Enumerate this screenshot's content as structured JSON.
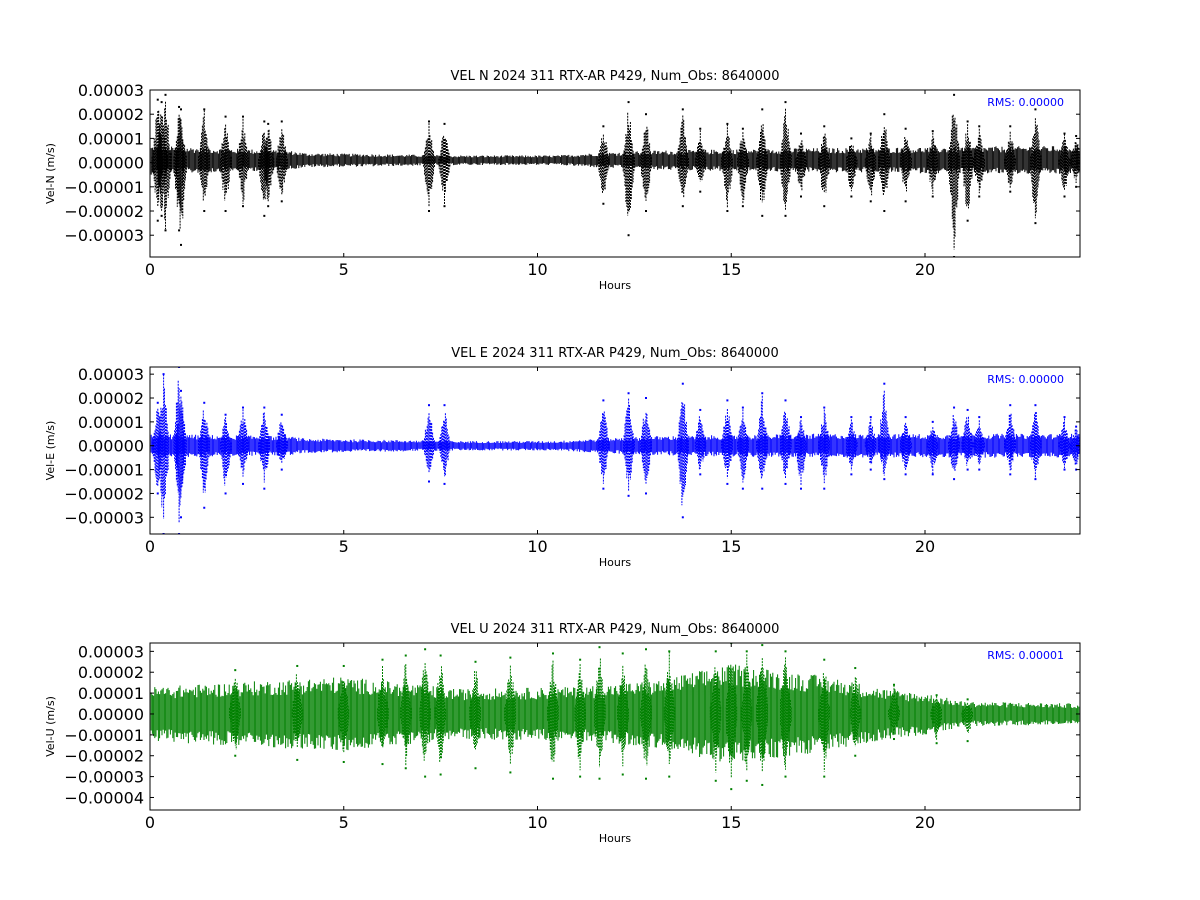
{
  "chart_data": [
    {
      "type": "scatter",
      "title": "VEL N 2024 311 RTX-AR  P429, Num_Obs: 8640000",
      "xlabel": "Hours",
      "ylabel": "Vel-N (m/s)",
      "xlim": [
        0,
        24
      ],
      "ylim": [
        -3.9e-05,
        3e-05
      ],
      "xticks": [
        0,
        5,
        10,
        15,
        20
      ],
      "xtick_labels": [
        "0",
        "5",
        "10",
        "15",
        "20"
      ],
      "yticks": [
        3e-05,
        2e-05,
        1e-05,
        0.0,
        -1e-05,
        -2e-05,
        -3e-05
      ],
      "ytick_labels": [
        "0.00003",
        "0.00002",
        "0.00001",
        "0.00000",
        "−0.00001",
        "−0.00002",
        "−0.00003"
      ],
      "annotation": "RMS:  0.00000",
      "annotation_color": "#0000ff",
      "series": [
        {
          "color": "#000000",
          "baseline": 1e-06,
          "noise_band": [
            [
              0,
              6e-06
            ],
            [
              3.6,
              4e-06
            ],
            [
              4.0,
              3e-06
            ],
            [
              8.0,
              2e-06
            ],
            [
              10.5,
              2e-06
            ],
            [
              11.5,
              3e-06
            ],
            [
              13.0,
              4e-06
            ],
            [
              17.0,
              5e-06
            ],
            [
              24,
              6e-06
            ]
          ],
          "bursts": [
            [
              0.2,
              2.6e-05,
              -2.4e-05
            ],
            [
              0.3,
              2.5e-05,
              -2.2e-05
            ],
            [
              0.4,
              2.8e-05,
              -2.8e-05
            ],
            [
              0.75,
              2.3e-05,
              -2.8e-05
            ],
            [
              0.8,
              2.2e-05,
              -3.4e-05
            ],
            [
              1.4,
              2.2e-05,
              -2e-05
            ],
            [
              1.95,
              1.9e-05,
              -2e-05
            ],
            [
              2.4,
              1.9e-05,
              -1.8e-05
            ],
            [
              2.95,
              1.7e-05,
              -2.2e-05
            ],
            [
              3.05,
              1.6e-05,
              -1.8e-05
            ],
            [
              3.4,
              1.7e-05,
              -1.6e-05
            ],
            [
              7.2,
              1.7e-05,
              -2e-05
            ],
            [
              7.6,
              1.6e-05,
              -1.8e-05
            ],
            [
              11.7,
              1.5e-05,
              -1.7e-05
            ],
            [
              12.35,
              2.5e-05,
              -3e-05
            ],
            [
              12.8,
              2e-05,
              -2e-05
            ],
            [
              13.75,
              2.2e-05,
              -1.8e-05
            ],
            [
              14.2,
              1.4e-05,
              -1.2e-05
            ],
            [
              14.9,
              1.6e-05,
              -2e-05
            ],
            [
              15.3,
              1.4e-05,
              -1.8e-05
            ],
            [
              15.8,
              2.2e-05,
              -2.2e-05
            ],
            [
              16.4,
              2.5e-05,
              -2.2e-05
            ],
            [
              16.8,
              1.2e-05,
              -1.4e-05
            ],
            [
              17.4,
              1.5e-05,
              -1.8e-05
            ],
            [
              18.1,
              1e-05,
              -1.4e-05
            ],
            [
              18.6,
              1.2e-05,
              -1.6e-05
            ],
            [
              18.95,
              2e-05,
              -2e-05
            ],
            [
              19.5,
              1.4e-05,
              -1.6e-05
            ],
            [
              20.2,
              1.3e-05,
              -1.4e-05
            ],
            [
              20.75,
              2.8e-05,
              -3.9e-05
            ],
            [
              21.1,
              1.7e-05,
              -2.4e-05
            ],
            [
              21.4,
              1.5e-05,
              -1.4e-05
            ],
            [
              22.2,
              1.5e-05,
              -1.2e-05
            ],
            [
              22.85,
              2.2e-05,
              -2.5e-05
            ],
            [
              23.6,
              1.2e-05,
              -1.4e-05
            ],
            [
              23.9,
              1.1e-05,
              -1e-05
            ]
          ]
        }
      ]
    },
    {
      "type": "scatter",
      "title": "VEL E 2024 311 RTX-AR  P429, Num_Obs: 8640000",
      "xlabel": "Hours",
      "ylabel": "Vel-E (m/s)",
      "xlim": [
        0,
        24
      ],
      "ylim": [
        -3.7e-05,
        3.3e-05
      ],
      "xticks": [
        0,
        5,
        10,
        15,
        20
      ],
      "xtick_labels": [
        "0",
        "5",
        "10",
        "15",
        "20"
      ],
      "yticks": [
        3e-05,
        2e-05,
        1e-05,
        0.0,
        -1e-05,
        -2e-05,
        -3e-05
      ],
      "ytick_labels": [
        "0.00003",
        "0.00002",
        "0.00001",
        "0.00000",
        "−0.00001",
        "−0.00002",
        "−0.00003"
      ],
      "annotation": "RMS:  0.00000",
      "annotation_color": "#0000ff",
      "series": [
        {
          "color": "#0000ff",
          "baseline": 0.0,
          "noise_band": [
            [
              0,
              5e-06
            ],
            [
              3.6,
              4e-06
            ],
            [
              4.0,
              3e-06
            ],
            [
              8.0,
              2e-06
            ],
            [
              10.5,
              2e-06
            ],
            [
              11.5,
              3e-06
            ],
            [
              13.0,
              4e-06
            ],
            [
              17.0,
              5e-06
            ],
            [
              24,
              5e-06
            ]
          ],
          "bursts": [
            [
              0.2,
              1.8e-05,
              -2e-05
            ],
            [
              0.35,
              3e-05,
              -3.7e-05
            ],
            [
              0.75,
              3.3e-05,
              -3.7e-05
            ],
            [
              0.8,
              2.3e-05,
              -3e-05
            ],
            [
              1.4,
              1.8e-05,
              -2.6e-05
            ],
            [
              1.95,
              1.3e-05,
              -2e-05
            ],
            [
              2.4,
              1.6e-05,
              -1.6e-05
            ],
            [
              2.95,
              1.6e-05,
              -1.8e-05
            ],
            [
              3.4,
              1.3e-05,
              -1e-05
            ],
            [
              7.2,
              1.7e-05,
              -1.5e-05
            ],
            [
              7.6,
              1.7e-05,
              -1.6e-05
            ],
            [
              11.7,
              1.9e-05,
              -1.8e-05
            ],
            [
              12.35,
              2.2e-05,
              -2.1e-05
            ],
            [
              12.8,
              2e-05,
              -2e-05
            ],
            [
              13.75,
              2.6e-05,
              -3e-05
            ],
            [
              14.2,
              1.5e-05,
              -1.2e-05
            ],
            [
              14.9,
              1.9e-05,
              -1.6e-05
            ],
            [
              15.3,
              1.6e-05,
              -1.8e-05
            ],
            [
              15.8,
              2.2e-05,
              -1.8e-05
            ],
            [
              16.4,
              1.9e-05,
              -1.6e-05
            ],
            [
              16.8,
              1.2e-05,
              -1.8e-05
            ],
            [
              17.4,
              1.6e-05,
              -1.8e-05
            ],
            [
              18.1,
              1.2e-05,
              -1.2e-05
            ],
            [
              18.6,
              1.2e-05,
              -1e-05
            ],
            [
              18.95,
              2.6e-05,
              -1.4e-05
            ],
            [
              19.5,
              1.2e-05,
              -1.2e-05
            ],
            [
              20.2,
              1e-05,
              -1.2e-05
            ],
            [
              20.75,
              1.6e-05,
              -1.4e-05
            ],
            [
              21.1,
              1.5e-05,
              -1e-05
            ],
            [
              21.4,
              1.2e-05,
              -1e-05
            ],
            [
              22.2,
              1.7e-05,
              -1.2e-05
            ],
            [
              22.85,
              1.7e-05,
              -1.4e-05
            ],
            [
              23.6,
              1.2e-05,
              -1e-05
            ],
            [
              23.9,
              8e-06,
              -1e-05
            ]
          ]
        }
      ]
    },
    {
      "type": "scatter",
      "title": "VEL U 2024 311 RTX-AR  P429, Num_Obs: 8640000",
      "xlabel": "Hours",
      "ylabel": "Vel-U (m/s)",
      "xlim": [
        0,
        24
      ],
      "ylim": [
        -4.6e-05,
        3.4e-05
      ],
      "xticks": [
        0,
        5,
        10,
        15,
        20
      ],
      "xtick_labels": [
        "0",
        "5",
        "10",
        "15",
        "20"
      ],
      "yticks": [
        3e-05,
        2e-05,
        1e-05,
        0.0,
        -1e-05,
        -2e-05,
        -3e-05,
        -4e-05
      ],
      "ytick_labels": [
        "0.00003",
        "0.00002",
        "0.00001",
        "0.00000",
        "−0.00001",
        "−0.00002",
        "−0.00003",
        "−0.00004"
      ],
      "annotation": "RMS:  0.00001",
      "annotation_color": "#0000ff",
      "series": [
        {
          "color": "#008000",
          "baseline": 0.0,
          "noise_band": [
            [
              0,
              1.3e-05
            ],
            [
              3,
              1.6e-05
            ],
            [
              5,
              1.8e-05
            ],
            [
              8,
              1.2e-05
            ],
            [
              11,
              1.3e-05
            ],
            [
              13,
              1.6e-05
            ],
            [
              15,
              2.4e-05
            ],
            [
              17.5,
              1.8e-05
            ],
            [
              19,
              1.2e-05
            ],
            [
              20,
              1e-05
            ],
            [
              21,
              6e-06
            ],
            [
              24,
              5e-06
            ]
          ],
          "bursts": [
            [
              2.2,
              2.1e-05,
              -2e-05
            ],
            [
              3.8,
              2.3e-05,
              -2.2e-05
            ],
            [
              5.0,
              2.3e-05,
              -2.3e-05
            ],
            [
              6.0,
              2.6e-05,
              -2.4e-05
            ],
            [
              6.6,
              2.8e-05,
              -2.6e-05
            ],
            [
              7.1,
              3.1e-05,
              -3e-05
            ],
            [
              7.5,
              2.8e-05,
              -2.9e-05
            ],
            [
              8.4,
              2.5e-05,
              -2.6e-05
            ],
            [
              9.3,
              2.7e-05,
              -2.8e-05
            ],
            [
              10.4,
              2.9e-05,
              -3.1e-05
            ],
            [
              11.1,
              2.6e-05,
              -3e-05
            ],
            [
              11.6,
              3.2e-05,
              -3.1e-05
            ],
            [
              12.2,
              2.9e-05,
              -2.9e-05
            ],
            [
              12.8,
              3.1e-05,
              -3.1e-05
            ],
            [
              13.4,
              3e-05,
              -3e-05
            ],
            [
              14.6,
              3e-05,
              -3.2e-05
            ],
            [
              15.0,
              3.4e-05,
              -3.6e-05
            ],
            [
              15.4,
              3e-05,
              -3.2e-05
            ],
            [
              15.8,
              3.3e-05,
              -3.4e-05
            ],
            [
              16.4,
              3e-05,
              -3e-05
            ],
            [
              17.4,
              2.6e-05,
              -3e-05
            ],
            [
              18.2,
              2.2e-05,
              -2e-05
            ],
            [
              19.2,
              1.4e-05,
              -1.2e-05
            ],
            [
              20.3,
              9e-06,
              -1.4e-05
            ],
            [
              21.1,
              7e-06,
              -1.3e-05
            ]
          ]
        }
      ]
    }
  ]
}
